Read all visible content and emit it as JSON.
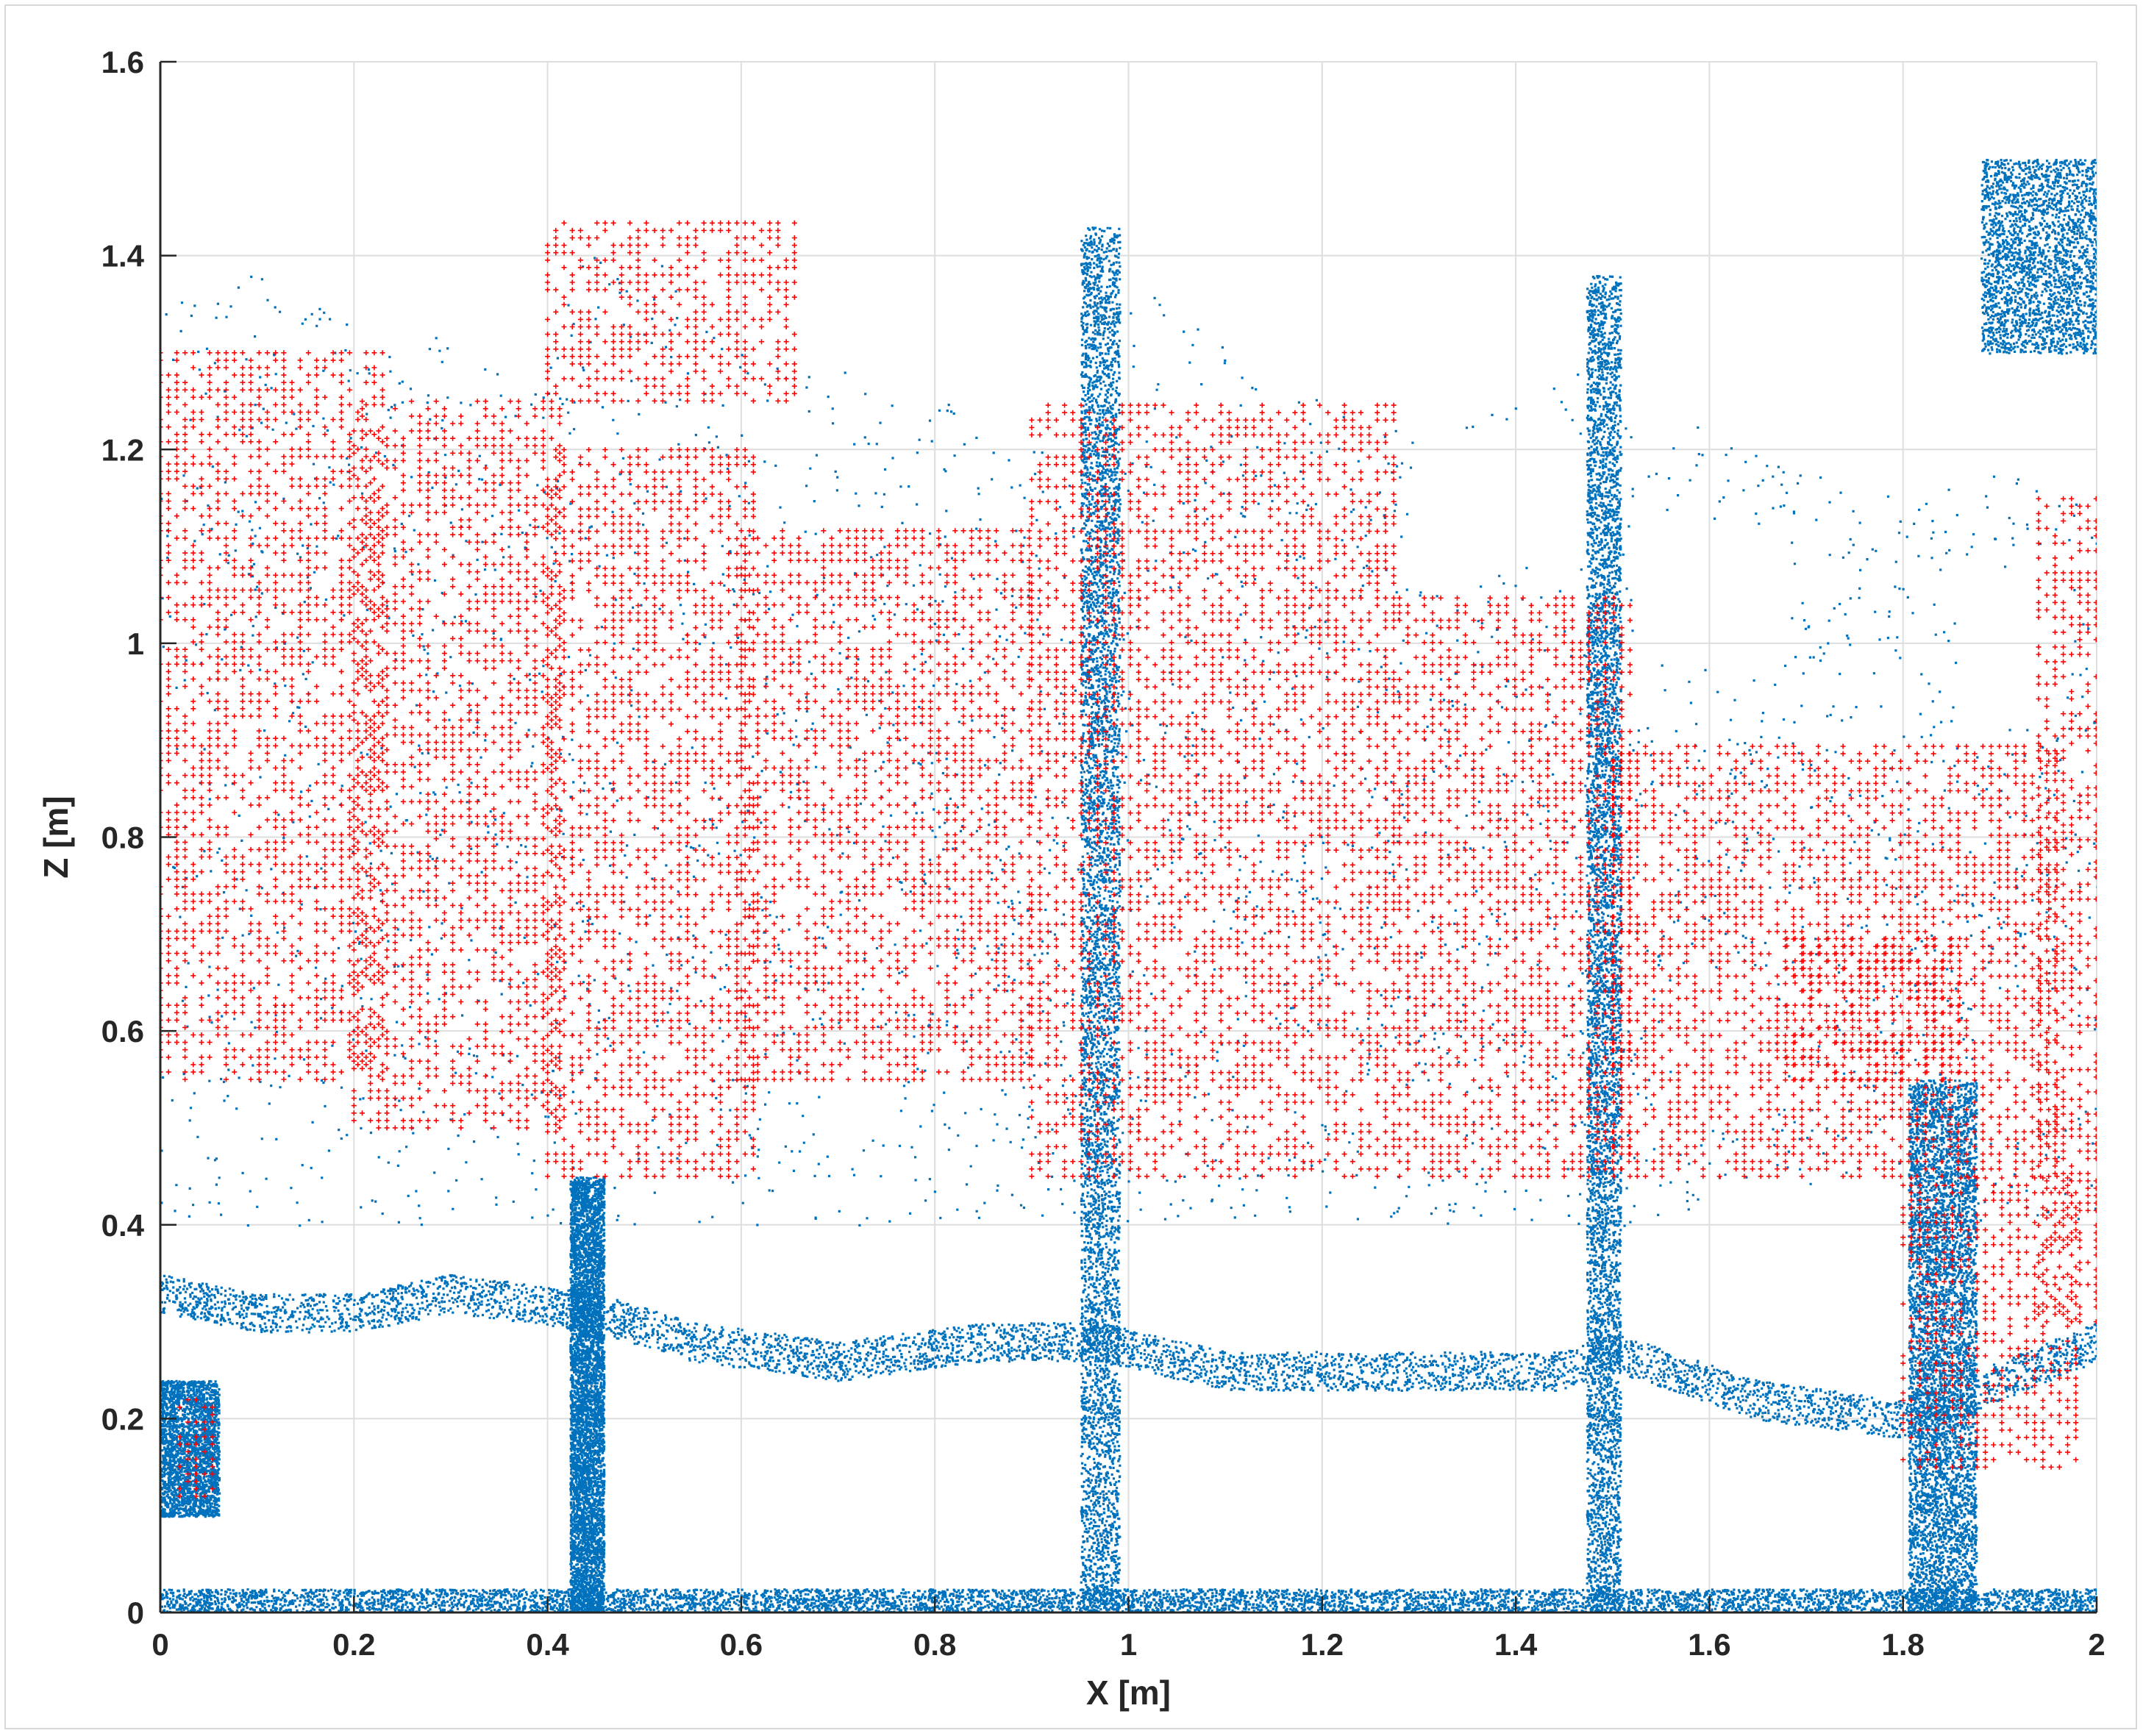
{
  "chart_data": {
    "type": "scatter",
    "title": "",
    "xlabel": "X [m]",
    "ylabel": "Z [m]",
    "xlim": [
      0,
      2
    ],
    "ylim": [
      0,
      1.6
    ],
    "x_ticks": [
      "0",
      "0.2",
      "0.4",
      "0.6",
      "0.8",
      "1",
      "1.2",
      "1.4",
      "1.6",
      "1.8",
      "2"
    ],
    "y_ticks": [
      "0",
      "0.2",
      "0.4",
      "0.6",
      "0.8",
      "1",
      "1.2",
      "1.4",
      "1.6"
    ],
    "grid": true,
    "legend": "none",
    "series": [
      {
        "marker": "dot",
        "color": "#0072bd",
        "structures": {
          "ground_band": {
            "x": [
              0,
              2
            ],
            "z": [
              0,
              0.025
            ]
          },
          "lower_branch": {
            "points": [
              [
                0,
                0.33
              ],
              [
                0.1,
                0.31
              ],
              [
                0.2,
                0.31
              ],
              [
                0.3,
                0.33
              ],
              [
                0.45,
                0.31
              ],
              [
                0.55,
                0.28
              ],
              [
                0.7,
                0.26
              ],
              [
                0.85,
                0.28
              ],
              [
                0.97,
                0.28
              ],
              [
                1.1,
                0.25
              ],
              [
                1.3,
                0.25
              ],
              [
                1.45,
                0.25
              ],
              [
                1.5,
                0.27
              ],
              [
                1.65,
                0.22
              ],
              [
                1.8,
                0.2
              ],
              [
                2.0,
                0.28
              ]
            ],
            "thickness": 0.04
          },
          "trunks": [
            {
              "x": 0.44,
              "width": 0.035,
              "z": [
                0,
                0.45
              ]
            },
            {
              "x": 0.97,
              "width": 0.04,
              "z": [
                0,
                1.43
              ]
            },
            {
              "x": 1.49,
              "width": 0.035,
              "z": [
                0,
                1.38
              ]
            },
            {
              "x": 1.84,
              "width": 0.07,
              "z": [
                0,
                0.55
              ]
            }
          ],
          "canopy_top": [
            [
              0,
              1.46
            ],
            [
              0.05,
              1.38
            ],
            [
              0.1,
              1.38
            ],
            [
              0.2,
              1.34
            ],
            [
              0.3,
              1.32
            ],
            [
              0.38,
              1.28
            ],
            [
              0.45,
              1.43
            ],
            [
              0.5,
              1.41
            ],
            [
              0.58,
              1.32
            ],
            [
              0.65,
              1.3
            ],
            [
              0.75,
              1.28
            ],
            [
              0.85,
              1.24
            ],
            [
              0.93,
              1.2
            ],
            [
              1.0,
              1.43
            ],
            [
              1.05,
              1.35
            ],
            [
              1.15,
              1.28
            ],
            [
              1.2,
              1.25
            ],
            [
              1.3,
              1.22
            ],
            [
              1.4,
              1.25
            ],
            [
              1.5,
              1.3
            ],
            [
              1.6,
              1.22
            ],
            [
              1.7,
              1.18
            ],
            [
              1.8,
              1.15
            ],
            [
              1.9,
              1.18
            ],
            [
              2.0,
              1.15
            ]
          ],
          "canopy_bottom_z": 0.4,
          "upper_right_cluster": {
            "x": [
              1.88,
              2.0
            ],
            "z": [
              1.3,
              1.5
            ]
          },
          "lower_left_cluster": {
            "x": [
              0,
              0.06
            ],
            "z": [
              0.1,
              0.24
            ]
          },
          "gaps": [
            {
              "x": [
                0.16,
                0.24
              ],
              "z": [
                0.9,
                1.02
              ]
            },
            {
              "x": [
                0.5,
                0.58
              ],
              "z": [
                0.9,
                1.0
              ]
            },
            {
              "x": [
                0.64,
                0.7
              ],
              "z": [
                0.72,
                0.8
              ]
            },
            {
              "x": [
                0.68,
                0.76
              ],
              "z": [
                0.5,
                0.58
              ]
            },
            {
              "x": [
                1.12,
                1.22
              ],
              "z": [
                0.52,
                0.6
              ]
            },
            {
              "x": [
                1.24,
                1.34
              ],
              "z": [
                0.46,
                0.54
              ]
            },
            {
              "x": [
                1.3,
                1.46
              ],
              "z": [
                1.08,
                1.22
              ]
            },
            {
              "x": [
                1.52,
                1.68
              ],
              "z": [
                0.98,
                1.12
              ]
            },
            {
              "x": [
                1.56,
                1.66
              ],
              "z": [
                0.5,
                0.66
              ]
            },
            {
              "x": [
                1.6,
                1.76
              ],
              "z": [
                0.28,
                0.44
              ]
            },
            {
              "x": [
                1.74,
                1.84
              ],
              "z": [
                0.32,
                0.44
              ]
            },
            {
              "x": [
                1.86,
                1.96
              ],
              "z": [
                0.92,
                1.08
              ]
            },
            {
              "x": [
                1.88,
                1.98
              ],
              "z": [
                0.5,
                0.64
              ]
            },
            {
              "x": [
                1.84,
                1.96
              ],
              "z": [
                0.12,
                0.24
              ]
            }
          ]
        }
      },
      {
        "marker": "plus",
        "color": "#ff0000",
        "structures": {
          "regions": [
            {
              "x": [
                0.0,
                0.23
              ],
              "z": [
                0.55,
                1.3
              ]
            },
            {
              "x": [
                0.2,
                0.42
              ],
              "z": [
                0.5,
                1.25
              ]
            },
            {
              "x": [
                0.4,
                0.62
              ],
              "z": [
                0.45,
                1.2
              ]
            },
            {
              "x": [
                0.6,
                0.9
              ],
              "z": [
                0.55,
                1.12
              ]
            },
            {
              "x": [
                0.9,
                1.28
              ],
              "z": [
                0.45,
                1.25
              ]
            },
            {
              "x": [
                1.28,
                1.52
              ],
              "z": [
                0.45,
                1.05
              ]
            },
            {
              "x": [
                1.5,
                1.96
              ],
              "z": [
                0.45,
                0.9
              ]
            },
            {
              "x": [
                1.68,
                1.86
              ],
              "z": [
                0.55,
                0.7
              ]
            },
            {
              "x": [
                1.94,
                2.0
              ],
              "z": [
                0.3,
                1.15
              ]
            },
            {
              "x": [
                0.4,
                0.66
              ],
              "z": [
                1.25,
                1.44
              ]
            },
            {
              "x": [
                0.02,
                0.06
              ],
              "z": [
                0.12,
                0.22
              ]
            },
            {
              "x": [
                1.8,
                1.98
              ],
              "z": [
                0.15,
                0.45
              ]
            }
          ]
        }
      }
    ]
  }
}
